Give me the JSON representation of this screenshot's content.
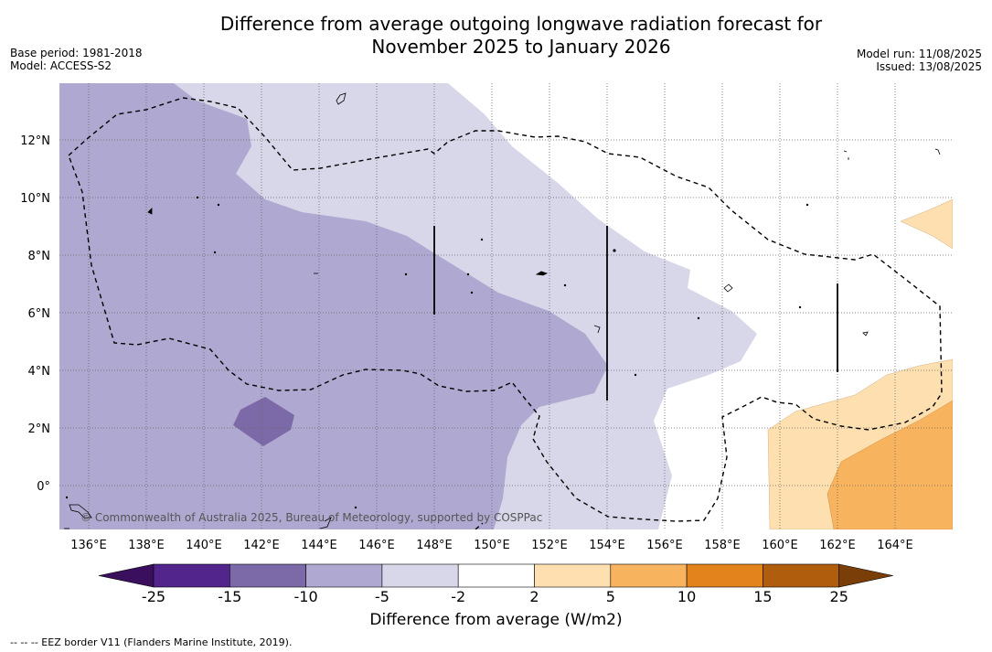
{
  "title_line1": "Difference from average outgoing longwave radiation forecast for",
  "title_line2": "November 2025 to January 2026",
  "meta_left": {
    "base_period": "Base period: 1981-2018",
    "model": "Model: ACCESS-S2"
  },
  "meta_right": {
    "model_run": "Model run: 11/08/2025",
    "issued": "Issued: 13/08/2025"
  },
  "axes": {
    "x_ticks": [
      "136°E",
      "138°E",
      "140°E",
      "142°E",
      "144°E",
      "146°E",
      "148°E",
      "150°E",
      "152°E",
      "154°E",
      "156°E",
      "158°E",
      "160°E",
      "162°E",
      "164°E"
    ],
    "y_ticks": [
      "12°N",
      "10°N",
      "8°N",
      "6°N",
      "4°N",
      "2°N",
      "0°"
    ]
  },
  "copyright": "© Commonwealth of Australia 2025, Bureau of Meteorology, supported by COSPPac",
  "colorbar": {
    "labels": [
      "-25",
      "-15",
      "-10",
      "-5",
      "-2",
      "2",
      "5",
      "10",
      "15",
      "25"
    ],
    "colors": [
      "#51258c",
      "#7c6aa8",
      "#afa8d0",
      "#d7d7e9",
      "#ffffff",
      "#fddfb0",
      "#f8b35e",
      "#e2831c",
      "#b05d0e"
    ],
    "ext_low": "#3a0f5e",
    "ext_high": "#7a3e08",
    "title": "Difference from average (W/m2)"
  },
  "colors": {
    "grid": "#666666",
    "eez": "#000000"
  },
  "footnote": "--  --  -- EEZ border V11 (Flanders Marine Institute, 2019)."
}
